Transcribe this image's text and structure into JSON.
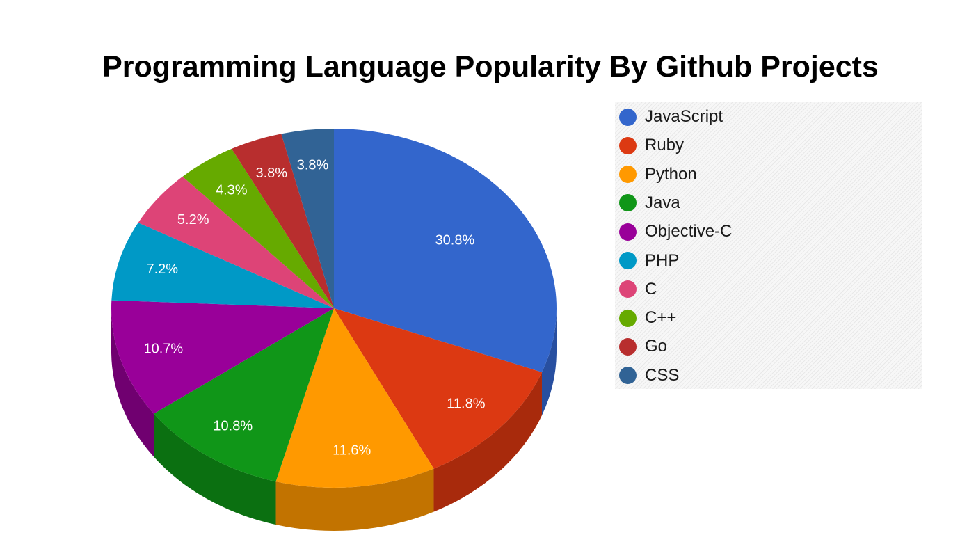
{
  "chart_data": {
    "type": "pie",
    "title": "Programming Language Popularity By Github Projects",
    "style": "3d",
    "legend_position": "right",
    "slices": [
      {
        "name": "JavaScript",
        "value": 30.8,
        "label": "30.8%",
        "color": "#3366cc",
        "side_color": "#284fa0"
      },
      {
        "name": "Ruby",
        "value": 11.8,
        "label": "11.8%",
        "color": "#dc3912",
        "side_color": "#a82a0c"
      },
      {
        "name": "Python",
        "value": 11.6,
        "label": "11.6%",
        "color": "#ff9900",
        "side_color": "#c27300"
      },
      {
        "name": "Java",
        "value": 10.8,
        "label": "10.8%",
        "color": "#109618",
        "side_color": "#0b7011"
      },
      {
        "name": "Objective-C",
        "value": 10.7,
        "label": "10.7%",
        "color": "#990099",
        "side_color": "#700070"
      },
      {
        "name": "PHP",
        "value": 7.2,
        "label": "7.2%",
        "color": "#0099c6",
        "side_color": "#0078a0"
      },
      {
        "name": "C",
        "value": 5.2,
        "label": "5.2%",
        "color": "#dd4477",
        "side_color": "#b0345e"
      },
      {
        "name": "C++",
        "value": 4.3,
        "label": "4.3%",
        "color": "#66aa00",
        "side_color": "#4d8000"
      },
      {
        "name": "Go",
        "value": 3.8,
        "label": "3.8%",
        "color": "#b82e2e",
        "side_color": "#8c2121"
      },
      {
        "name": "CSS",
        "value": 3.8,
        "label": "3.8%",
        "color": "#316395",
        "side_color": "#244a70"
      }
    ]
  }
}
